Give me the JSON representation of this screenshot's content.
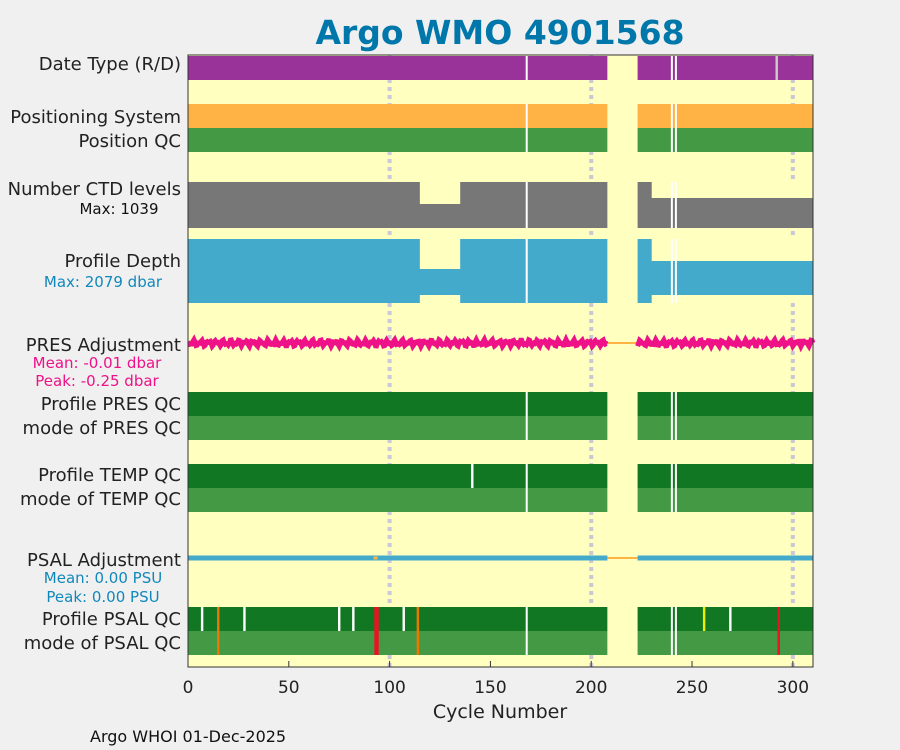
{
  "chart_data": {
    "type": "bar",
    "title": "Argo WMO 4901568",
    "xlabel": "Cycle Number",
    "xlim": [
      0,
      310
    ],
    "xticks": [
      0,
      50,
      100,
      150,
      200,
      250,
      300
    ],
    "gridlines_at": [
      100,
      200,
      300
    ],
    "data_gap": [
      208,
      223
    ],
    "cycle_gaps": [
      168,
      240,
      242
    ],
    "rows": [
      {
        "id": "date-type",
        "label": "Date Type (R/D)",
        "color": "#993399"
      },
      {
        "id": "positioning-system",
        "label": "Positioning System",
        "color": "#ffb344"
      },
      {
        "id": "position-qc",
        "label": "Position QC",
        "color": "#449944"
      },
      {
        "id": "ctd-levels",
        "label": "Number CTD levels",
        "sublabel": "Max: 1039",
        "color": "#777777"
      },
      {
        "id": "profile-depth",
        "label": "Profile Depth",
        "sublabel": "Max: 2079 dbar",
        "color": "#44aacc"
      },
      {
        "id": "pres-adjustment",
        "label": "PRES Adjustment",
        "sublabels": [
          "Mean: -0.01 dbar",
          "Peak: -0.25 dbar"
        ],
        "color": "#ee1188"
      },
      {
        "id": "profile-pres-qc",
        "label": "Profile PRES QC",
        "color": "#117722"
      },
      {
        "id": "mode-pres-qc",
        "label": "mode of PRES QC",
        "color": "#449944"
      },
      {
        "id": "profile-temp-qc",
        "label": "Profile TEMP QC",
        "color": "#117722"
      },
      {
        "id": "mode-temp-qc",
        "label": "mode of TEMP QC",
        "color": "#449944"
      },
      {
        "id": "psal-adjustment",
        "label": "PSAL Adjustment",
        "sublabels": [
          "Mean: 0.00 PSU",
          "Peak: 0.00 PSU"
        ],
        "color": "#44aacc"
      },
      {
        "id": "profile-psal-qc",
        "label": "Profile PSAL QC",
        "color": "#117722"
      },
      {
        "id": "mode-psal-qc",
        "label": "mode of PSAL QC",
        "color": "#449944"
      }
    ],
    "psal_qc_marks": [
      {
        "cycle": 7,
        "color": "#ffffff"
      },
      {
        "cycle": 15,
        "color": "#ee7700"
      },
      {
        "cycle": 28,
        "color": "#ffffff"
      },
      {
        "cycle": 75,
        "color": "#ffffff"
      },
      {
        "cycle": 82,
        "color": "#ffffff"
      },
      {
        "cycle": 93,
        "color": "#ee1122"
      },
      {
        "cycle": 94,
        "color": "#ee1122"
      },
      {
        "cycle": 107,
        "color": "#ffffff"
      },
      {
        "cycle": 114,
        "color": "#ee7700"
      },
      {
        "cycle": 256,
        "color": "#eeee00"
      },
      {
        "cycle": 269,
        "color": "#ffffff"
      },
      {
        "cycle": 293,
        "color": "#ee1122"
      }
    ],
    "date_type_marks": [
      {
        "cycle": 292,
        "color": "#cccccc"
      }
    ],
    "temp_qc_marks": [
      {
        "cycle": 141,
        "color": "#ffffff"
      }
    ]
  },
  "footer": "Argo WHOI 01-Dec-2025"
}
